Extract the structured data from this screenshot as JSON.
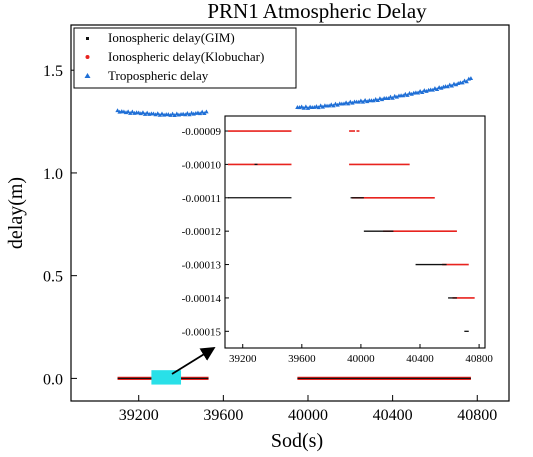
{
  "chart_data": [
    {
      "type": "scatter",
      "title": "PRN1 Atmospheric Delay",
      "xlabel": "Sod(s)",
      "ylabel": "delay(m)",
      "xlim": [
        38880,
        40950
      ],
      "ylim": [
        -0.11,
        1.72
      ],
      "xticks": [
        39200,
        39600,
        40000,
        40400,
        40800
      ],
      "yticks": [
        0.0,
        0.5,
        1.0,
        1.5
      ],
      "ytick_labels": [
        "0.0",
        "0.5",
        "1.0",
        "1.5"
      ],
      "legend": {
        "placement": "top-left",
        "entries": [
          "Ionospheric delay(GIM)",
          "Ionospheric delay(Klobuchar)",
          "Tropospheric delay"
        ]
      },
      "series": [
        {
          "name": "Tropospheric delay",
          "color": "#1f6fd6",
          "marker": "triangle",
          "points": [
            [
              39100,
              1.3
            ],
            [
              39150,
              1.295
            ],
            [
              39200,
              1.292
            ],
            [
              39250,
              1.288
            ],
            [
              39300,
              1.285
            ],
            [
              39350,
              1.283
            ],
            [
              39400,
              1.285
            ],
            [
              39450,
              1.288
            ],
            [
              39500,
              1.293
            ],
            [
              39530,
              1.295
            ],
            [
              39950,
              1.32
            ],
            [
              40000,
              1.318
            ],
            [
              40050,
              1.322
            ],
            [
              40100,
              1.328
            ],
            [
              40150,
              1.335
            ],
            [
              40200,
              1.342
            ],
            [
              40250,
              1.348
            ],
            [
              40300,
              1.352
            ],
            [
              40350,
              1.36
            ],
            [
              40400,
              1.368
            ],
            [
              40450,
              1.378
            ],
            [
              40500,
              1.388
            ],
            [
              40550,
              1.398
            ],
            [
              40600,
              1.408
            ],
            [
              40650,
              1.42
            ],
            [
              40700,
              1.432
            ],
            [
              40750,
              1.448
            ],
            [
              40770,
              1.46
            ]
          ]
        },
        {
          "name": "Ionospheric delay(Klobuchar)",
          "color": "#e8231f",
          "marker": "dot",
          "segments": [
            [
              39100,
              39530,
              0.0
            ],
            [
              39950,
              40770,
              0.0
            ]
          ]
        },
        {
          "name": "Ionospheric delay(GIM)",
          "color": "#111111",
          "marker": "square",
          "segments": [
            [
              39100,
              39530,
              0.0
            ],
            [
              39950,
              40770,
              0.0
            ]
          ]
        }
      ],
      "annotation": {
        "highlight_box": {
          "x": [
            39260,
            39400
          ],
          "y": [
            -0.03,
            0.04
          ],
          "color": "#29e0e8"
        },
        "arrow_to": "inset"
      }
    },
    {
      "type": "scatter",
      "title": "",
      "xlim": [
        39080,
        40840
      ],
      "ylim": [
        -0.000155,
        -8.55e-05
      ],
      "xticks": [
        39200,
        39600,
        40000,
        40400,
        40800
      ],
      "yticks": [
        -9e-05,
        -0.0001,
        -0.00011,
        -0.00012,
        -0.00013,
        -0.00014,
        -0.00015
      ],
      "ytick_labels": [
        "-0.00009",
        "-0.00010",
        "-0.00011",
        "-0.00012",
        "-0.00013",
        "-0.00014",
        "-0.00015"
      ],
      "series": [
        {
          "name": "Ionospheric delay(Klobuchar)",
          "color": "#e8231f",
          "segments": [
            [
              39100,
              39530,
              -9e-05
            ],
            [
              39920,
              39960,
              -9e-05
            ],
            [
              39970,
              39990,
              -9e-05
            ],
            [
              39100,
              39530,
              -0.0001
            ],
            [
              39920,
              40330,
              -0.0001
            ],
            [
              39940,
              40500,
              -0.00011
            ],
            [
              40150,
              40650,
              -0.00012
            ],
            [
              40550,
              40730,
              -0.00013
            ],
            [
              40620,
              40770,
              -0.00014
            ]
          ]
        },
        {
          "name": "Ionospheric delay(GIM)",
          "color": "#111111",
          "segments": [
            [
              39280,
              39300,
              -0.0001
            ],
            [
              39100,
              39530,
              -0.00011
            ],
            [
              39930,
              40020,
              -0.00011
            ],
            [
              40020,
              40220,
              -0.00012
            ],
            [
              40370,
              40580,
              -0.00013
            ],
            [
              40590,
              40650,
              -0.00014
            ],
            [
              40700,
              40730,
              -0.00015
            ]
          ]
        }
      ]
    }
  ],
  "colors": {
    "tropospheric": "#1f6fd6",
    "klobuchar": "#e8231f",
    "gim": "#111111",
    "highlight": "#29e0e8"
  }
}
